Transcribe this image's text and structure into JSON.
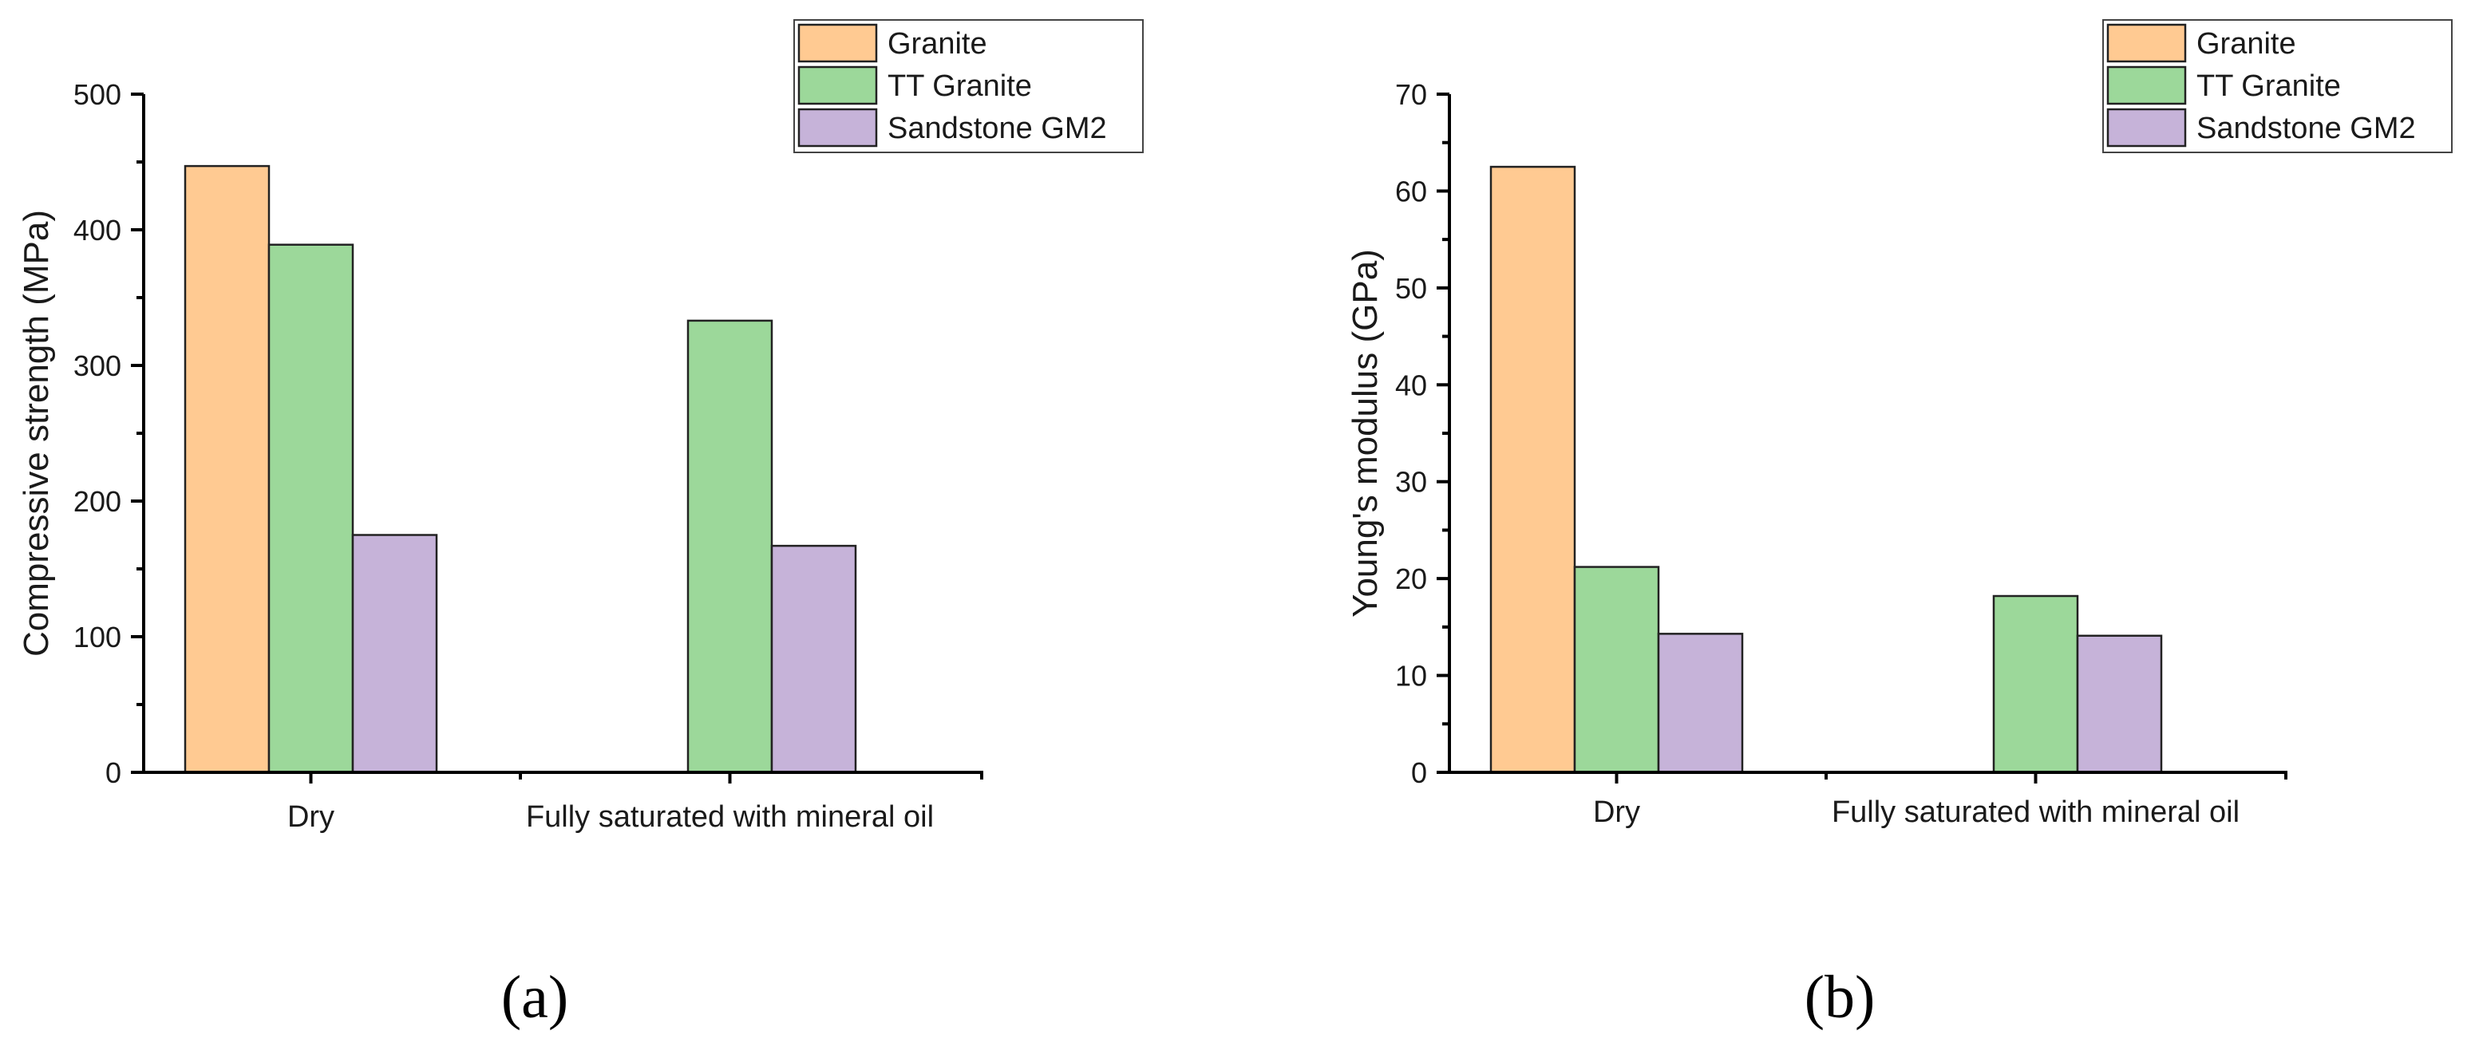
{
  "series_colors": {
    "Granite": "#FFCA92",
    "TT Granite": "#9CD89A",
    "Sandstone GM2": "#C6B3D9"
  },
  "chart_data": [
    {
      "type": "bar",
      "panel_label": "(a)",
      "ylabel": "Compressive strength (MPa)",
      "xlabel": "",
      "categories": [
        "Dry",
        "Fully saturated with mineral oil"
      ],
      "ylim": [
        0,
        500
      ],
      "yticks": [
        0,
        100,
        200,
        300,
        400,
        500
      ],
      "legend_position": "top-right",
      "series": [
        {
          "name": "Granite",
          "values": [
            447,
            null
          ]
        },
        {
          "name": "TT Granite",
          "values": [
            389,
            333
          ]
        },
        {
          "name": "Sandstone GM2",
          "values": [
            175,
            167
          ]
        }
      ]
    },
    {
      "type": "bar",
      "panel_label": "(b)",
      "ylabel": "Young's modulus (GPa)",
      "xlabel": "",
      "categories": [
        "Dry",
        "Fully saturated with mineral oil"
      ],
      "ylim": [
        0,
        70
      ],
      "yticks": [
        0,
        10,
        20,
        30,
        40,
        50,
        60,
        70
      ],
      "legend_position": "top-right",
      "series": [
        {
          "name": "Granite",
          "values": [
            62.5,
            null
          ]
        },
        {
          "name": "TT Granite",
          "values": [
            21.2,
            18.2
          ]
        },
        {
          "name": "Sandstone GM2",
          "values": [
            14.3,
            14.1
          ]
        }
      ]
    }
  ]
}
